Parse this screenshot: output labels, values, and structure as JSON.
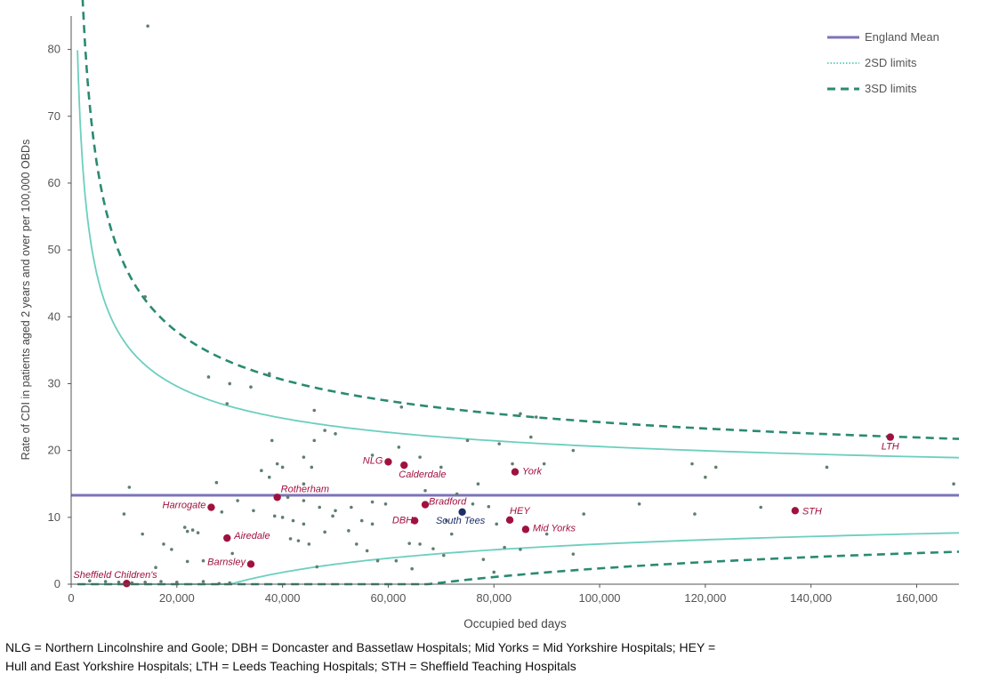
{
  "chart_data": {
    "type": "scatter",
    "xlabel": "Occupied bed days",
    "ylabel": "Rate of CDI in patients aged 2 years and over  per 100,000 OBDs",
    "xlim": [
      0,
      168000
    ],
    "ylim": [
      0,
      85
    ],
    "x_ticks": [
      0,
      20000,
      40000,
      60000,
      80000,
      100000,
      120000,
      140000,
      160000
    ],
    "x_tick_labels": [
      "0",
      "20,000",
      "40,000",
      "60,000",
      "80,000",
      "100,000",
      "120,000",
      "140,000",
      "160,000"
    ],
    "y_ticks": [
      0,
      10,
      20,
      30,
      40,
      50,
      60,
      70,
      80
    ],
    "y_tick_labels": [
      "0",
      "10",
      "20",
      "30",
      "40",
      "50",
      "60",
      "70",
      "80"
    ],
    "grid": false,
    "legend_position": "top-right",
    "legend": [
      {
        "label": "England Mean",
        "style": "solid",
        "color": "#7b74b8"
      },
      {
        "label": "2SD limits",
        "style": "dotted",
        "color": "#6ccfbf"
      },
      {
        "label": "3SD limits",
        "style": "dashed",
        "color": "#2a8a72"
      }
    ],
    "mean": 13.3,
    "highlighted_points": [
      {
        "label": "Sheffield Children's",
        "x": 10500,
        "y": 0.1,
        "color": "#a0123e"
      },
      {
        "label": "Barnsley",
        "x": 34000,
        "y": 3.0,
        "color": "#a0123e"
      },
      {
        "label": "Airedale",
        "x": 29500,
        "y": 6.9,
        "color": "#a0123e"
      },
      {
        "label": "Harrogate",
        "x": 26500,
        "y": 11.5,
        "color": "#a0123e"
      },
      {
        "label": "Rotherham",
        "x": 39000,
        "y": 13.0,
        "color": "#a0123e"
      },
      {
        "label": "NLG",
        "x": 60000,
        "y": 18.3,
        "color": "#a0123e"
      },
      {
        "label": "Calderdale",
        "x": 63000,
        "y": 17.8,
        "color": "#a0123e"
      },
      {
        "label": "DBH",
        "x": 65000,
        "y": 9.5,
        "color": "#a0123e"
      },
      {
        "label": "Bradford",
        "x": 67000,
        "y": 11.9,
        "color": "#a0123e"
      },
      {
        "label": "South Tees",
        "x": 74000,
        "y": 10.8,
        "color": "#1d2d6b"
      },
      {
        "label": "York",
        "x": 84000,
        "y": 16.8,
        "color": "#a0123e"
      },
      {
        "label": "HEY",
        "x": 83000,
        "y": 9.6,
        "color": "#a0123e"
      },
      {
        "label": "Mid Yorks",
        "x": 86000,
        "y": 8.2,
        "color": "#a0123e"
      },
      {
        "label": "STH",
        "x": 137000,
        "y": 11.0,
        "color": "#a0123e"
      },
      {
        "label": "LTH",
        "x": 155000,
        "y": 22.0,
        "color": "#a0123e"
      }
    ],
    "other_points": [
      [
        14500,
        83.5
      ],
      [
        14000,
        43
      ],
      [
        26000,
        31
      ],
      [
        30000,
        30
      ],
      [
        34000,
        29.5
      ],
      [
        37500,
        31.5
      ],
      [
        29500,
        27
      ],
      [
        46000,
        26
      ],
      [
        48000,
        23
      ],
      [
        50000,
        22.5
      ],
      [
        62000,
        20.5
      ],
      [
        66000,
        19
      ],
      [
        57000,
        19.3
      ],
      [
        62500,
        26.5
      ],
      [
        85000,
        25.5
      ],
      [
        88000,
        25
      ],
      [
        87000,
        22
      ],
      [
        81000,
        21
      ],
      [
        95000,
        20
      ],
      [
        117500,
        18
      ],
      [
        122000,
        17.5
      ],
      [
        120000,
        16
      ],
      [
        143000,
        17.5
      ],
      [
        89500,
        18
      ],
      [
        83500,
        18
      ],
      [
        77000,
        15
      ],
      [
        75000,
        21.5
      ],
      [
        70000,
        17.5
      ],
      [
        73000,
        13.5
      ],
      [
        67000,
        14
      ],
      [
        36000,
        17
      ],
      [
        38000,
        21.5
      ],
      [
        39000,
        18
      ],
      [
        37500,
        16
      ],
      [
        40000,
        17.5
      ],
      [
        44000,
        19
      ],
      [
        45500,
        17.5
      ],
      [
        46000,
        21.5
      ],
      [
        44000,
        15
      ],
      [
        41000,
        13
      ],
      [
        44000,
        12.5
      ],
      [
        47000,
        11.5
      ],
      [
        50000,
        11
      ],
      [
        53000,
        11.5
      ],
      [
        57000,
        12.3
      ],
      [
        59500,
        12
      ],
      [
        49500,
        10.2
      ],
      [
        55000,
        9.5
      ],
      [
        57000,
        9
      ],
      [
        40000,
        10
      ],
      [
        42000,
        9.5
      ],
      [
        44000,
        9
      ],
      [
        43000,
        6.5
      ],
      [
        45000,
        6
      ],
      [
        48000,
        7.8
      ],
      [
        52500,
        8
      ],
      [
        54000,
        6
      ],
      [
        56000,
        5
      ],
      [
        58000,
        3.5
      ],
      [
        61500,
        3.5
      ],
      [
        64000,
        6.1
      ],
      [
        66000,
        6
      ],
      [
        71000,
        9.5
      ],
      [
        72000,
        7.5
      ],
      [
        76000,
        12
      ],
      [
        79000,
        11.6
      ],
      [
        80500,
        9
      ],
      [
        82000,
        5.5
      ],
      [
        85000,
        5.2
      ],
      [
        78000,
        3.7
      ],
      [
        90000,
        7.5
      ],
      [
        95000,
        4.5
      ],
      [
        97000,
        10.5
      ],
      [
        107500,
        12
      ],
      [
        118000,
        10.5
      ],
      [
        130500,
        11.5
      ],
      [
        167000,
        15
      ],
      [
        80000,
        1.8
      ],
      [
        10000,
        10.5
      ],
      [
        13500,
        7.5
      ],
      [
        21500,
        8.5
      ],
      [
        22000,
        7.9
      ],
      [
        23000,
        8.1
      ],
      [
        24000,
        7.7
      ],
      [
        17500,
        6
      ],
      [
        19000,
        5.2
      ],
      [
        16000,
        2.5
      ],
      [
        22000,
        3.4
      ],
      [
        25000,
        3.5
      ],
      [
        30500,
        4.6
      ],
      [
        3500,
        0.5
      ],
      [
        6500,
        0.4
      ],
      [
        9000,
        0.3
      ],
      [
        11500,
        0.2
      ],
      [
        14000,
        0.3
      ],
      [
        17000,
        0.4
      ],
      [
        20000,
        0.3
      ],
      [
        25000,
        0.4
      ],
      [
        28000,
        0.1
      ],
      [
        30000,
        0.2
      ],
      [
        27500,
        15.2
      ],
      [
        11000,
        14.5
      ],
      [
        31500,
        12.5
      ],
      [
        28500,
        10.8
      ],
      [
        34500,
        11
      ],
      [
        38500,
        10.2
      ],
      [
        41500,
        6.8
      ],
      [
        46500,
        2.6
      ],
      [
        64500,
        2.3
      ],
      [
        68500,
        5.3
      ],
      [
        70500,
        4.3
      ]
    ]
  },
  "footnote": {
    "line1": "NLG = Northern Lincolnshire and Goole; DBH = Doncaster and Bassetlaw Hospitals; Mid Yorks = Mid Yorkshire Hospitals; HEY =",
    "line2": "Hull and East Yorkshire Hospitals; LTH = Leeds Teaching Hospitals; STH = Sheffield Teaching Hospitals"
  }
}
